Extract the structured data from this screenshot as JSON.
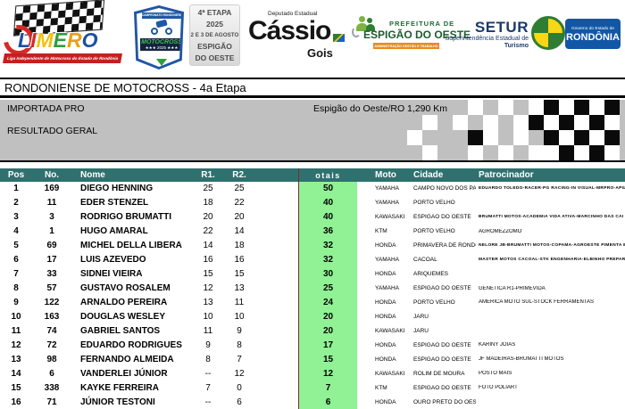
{
  "colors": {
    "header_teal": "#2e716f",
    "total_green": "#90f195",
    "band_silver": "#c0c0c0",
    "accent_maroon": "#7b2c2c"
  },
  "logos": {
    "limero": {
      "letters": [
        {
          "ch": "L",
          "color": "#1c4fa3"
        },
        {
          "ch": "I",
          "color": "#d42a28"
        },
        {
          "ch": "M",
          "color": "#f2c10f"
        },
        {
          "ch": "E",
          "color": "#2e9e3f"
        },
        {
          "ch": "R",
          "color": "#e8a117"
        },
        {
          "ch": "O",
          "color": "#1c4fa3"
        }
      ],
      "tagline": "Liga Independente de Motocross do Estado de Rondônia"
    },
    "badge": {
      "top": "CAMPEONATO RONDONIENSE",
      "title": "MOTOCROSS",
      "year": "★★★ 2025 ★★★"
    },
    "etapa_box": {
      "lines": [
        "4ª ETAPA",
        "2025",
        "2 E 3 DE AGOSTO",
        "ESPIGÃO",
        "DO OESTE"
      ]
    },
    "cassio": {
      "small": "Deputado Estadual",
      "big": "Cássio",
      "sub": "Gois"
    },
    "prefeitura": {
      "line1": "PREFEITURA DE",
      "line2": "ESPIGÃO DO OESTE",
      "banner": "ADMINISTRAÇÃO GESTÃO E TRABALHO"
    },
    "setur": {
      "big": "SETUR",
      "sub1": "Superintendência Estadual de",
      "sub2": "Turismo"
    },
    "governo": {
      "small": "Governo do Estado de",
      "big": "RONDÔNIA"
    }
  },
  "title_bar": {
    "text": "RONDONIENSE DE MOTOCROSS - 4a Etapa"
  },
  "info_band": {
    "category": "IMPORTADA PRO",
    "location": "Espigão do Oeste/RO 1,290 Km",
    "result_label": "RESULTADO GERAL",
    "checker_pattern": [
      "gggggwgwgwbwbwb",
      "ggwgwgwgwbwbwbw",
      "gwgggbwgwgbwbwb",
      "ggwggwgwgwwbwbw"
    ]
  },
  "table": {
    "headers": {
      "pos": "Pos",
      "no": "No.",
      "nome": "Nome",
      "r1": "R1.",
      "r2": "R2.",
      "total": "otais",
      "moto": "Moto",
      "cidade": "Cidade",
      "patrocinador": "Patrocinador"
    },
    "rows": [
      {
        "pos": "1",
        "no": "169",
        "nome": "DIEGO HENNING",
        "r1": "25",
        "r2": "25",
        "total": "50",
        "moto": "YAMAHA",
        "cidade": "CAMPO NOVO DOS PARECIS- MT",
        "patrocinador": "EDUARDO TOLEDO-RACER-PG RACING-IN VISUAL-MRPRÓ-APIL"
      },
      {
        "pos": "2",
        "no": "11",
        "nome": "EDER STENZEL",
        "r1": "18",
        "r2": "22",
        "total": "40",
        "moto": "YAMAHA",
        "cidade": "PORTO VELHO",
        "patrocinador": ""
      },
      {
        "pos": "3",
        "no": "3",
        "nome": "RODRIGO BRUMATTI",
        "r1": "20",
        "r2": "20",
        "total": "40",
        "moto": "KAWASAKI",
        "cidade": "ESPIGÃO DO OESTE",
        "patrocinador": "BRUMATTI MOTOS-ACADEMIA VIDA ATIVA-MARCINHO DAS CAI"
      },
      {
        "pos": "4",
        "no": "1",
        "nome": "HUGO AMARAL",
        "r1": "22",
        "r2": "14",
        "total": "36",
        "moto": "KTM",
        "cidade": "PORTO VELHO",
        "patrocinador": "AGROMEZZOMO"
      },
      {
        "pos": "5",
        "no": "69",
        "nome": "MICHEL DELLA LIBERA",
        "r1": "14",
        "r2": "18",
        "total": "32",
        "moto": "HONDA",
        "cidade": "PRIMAVERA DE RONDÔNIA",
        "patrocinador": "NELORE JB-BRUMATTI MOTOS-COPAMA-AGROESTE PIMENTA B"
      },
      {
        "pos": "6",
        "no": "17",
        "nome": "LUIS AZEVEDO",
        "r1": "16",
        "r2": "16",
        "total": "32",
        "moto": "YAMAHA",
        "cidade": "CACOAL",
        "patrocinador": "MASTER MOTOS CACOAL-STK ENGENHARIA-ELBINHO PREPARA"
      },
      {
        "pos": "7",
        "no": "33",
        "nome": "SIDNEI VIEIRA",
        "r1": "15",
        "r2": "15",
        "total": "30",
        "moto": "HONDA",
        "cidade": "ARIQUEMES",
        "patrocinador": ""
      },
      {
        "pos": "8",
        "no": "57",
        "nome": "GUSTAVO ROSALEM",
        "r1": "12",
        "r2": "13",
        "total": "25",
        "moto": "YAMAHA",
        "cidade": "ESPIGÃO DO OESTE",
        "patrocinador": "GENÉTICA R1-PRIMEVIDA"
      },
      {
        "pos": "9",
        "no": "122",
        "nome": "ARNALDO PEREIRA",
        "r1": "13",
        "r2": "11",
        "total": "24",
        "moto": "HONDA",
        "cidade": "PORTO VELHO",
        "patrocinador": "AMERICA MOTO SUL-STOCK FERRAMENTAS"
      },
      {
        "pos": "10",
        "no": "163",
        "nome": "DOUGLAS WESLEY",
        "r1": "10",
        "r2": "10",
        "total": "20",
        "moto": "HONDA",
        "cidade": "JARU",
        "patrocinador": ""
      },
      {
        "pos": "11",
        "no": "74",
        "nome": "GABRIEL SANTOS",
        "r1": "11",
        "r2": "9",
        "total": "20",
        "moto": "KAWASAKI",
        "cidade": "JARU",
        "patrocinador": ""
      },
      {
        "pos": "12",
        "no": "72",
        "nome": "EDUARDO RODRIGUES",
        "r1": "9",
        "r2": "8",
        "total": "17",
        "moto": "HONDA",
        "cidade": "ESPIGÃO DO OESTE",
        "patrocinador": "KARINY JÓIAS"
      },
      {
        "pos": "13",
        "no": "98",
        "nome": "FERNANDO ALMEIDA",
        "r1": "8",
        "r2": "7",
        "total": "15",
        "moto": "HONDA",
        "cidade": "ESPIGÃO DO OESTE",
        "patrocinador": "JF MADEIRAS-BRUMATTI MOTOS"
      },
      {
        "pos": "14",
        "no": "6",
        "nome": "VANDERLEI JÚNIOR",
        "r1": "--",
        "r2": "12",
        "total": "12",
        "moto": "KAWASAKI",
        "cidade": "ROLIM DE MOURA",
        "patrocinador": "POSTO MAIS"
      },
      {
        "pos": "15",
        "no": "338",
        "nome": "KAYKE FERREIRA",
        "r1": "7",
        "r2": "0",
        "total": "7",
        "moto": "KTM",
        "cidade": "ESPIGÃO DO OESTE",
        "patrocinador": "FOTO POLIART"
      },
      {
        "pos": "16",
        "no": "71",
        "nome": "JÚNIOR TESTONI",
        "r1": "--",
        "r2": "6",
        "total": "6",
        "moto": "HONDA",
        "cidade": "OURO PRETO DO OESTE",
        "patrocinador": ""
      }
    ]
  }
}
